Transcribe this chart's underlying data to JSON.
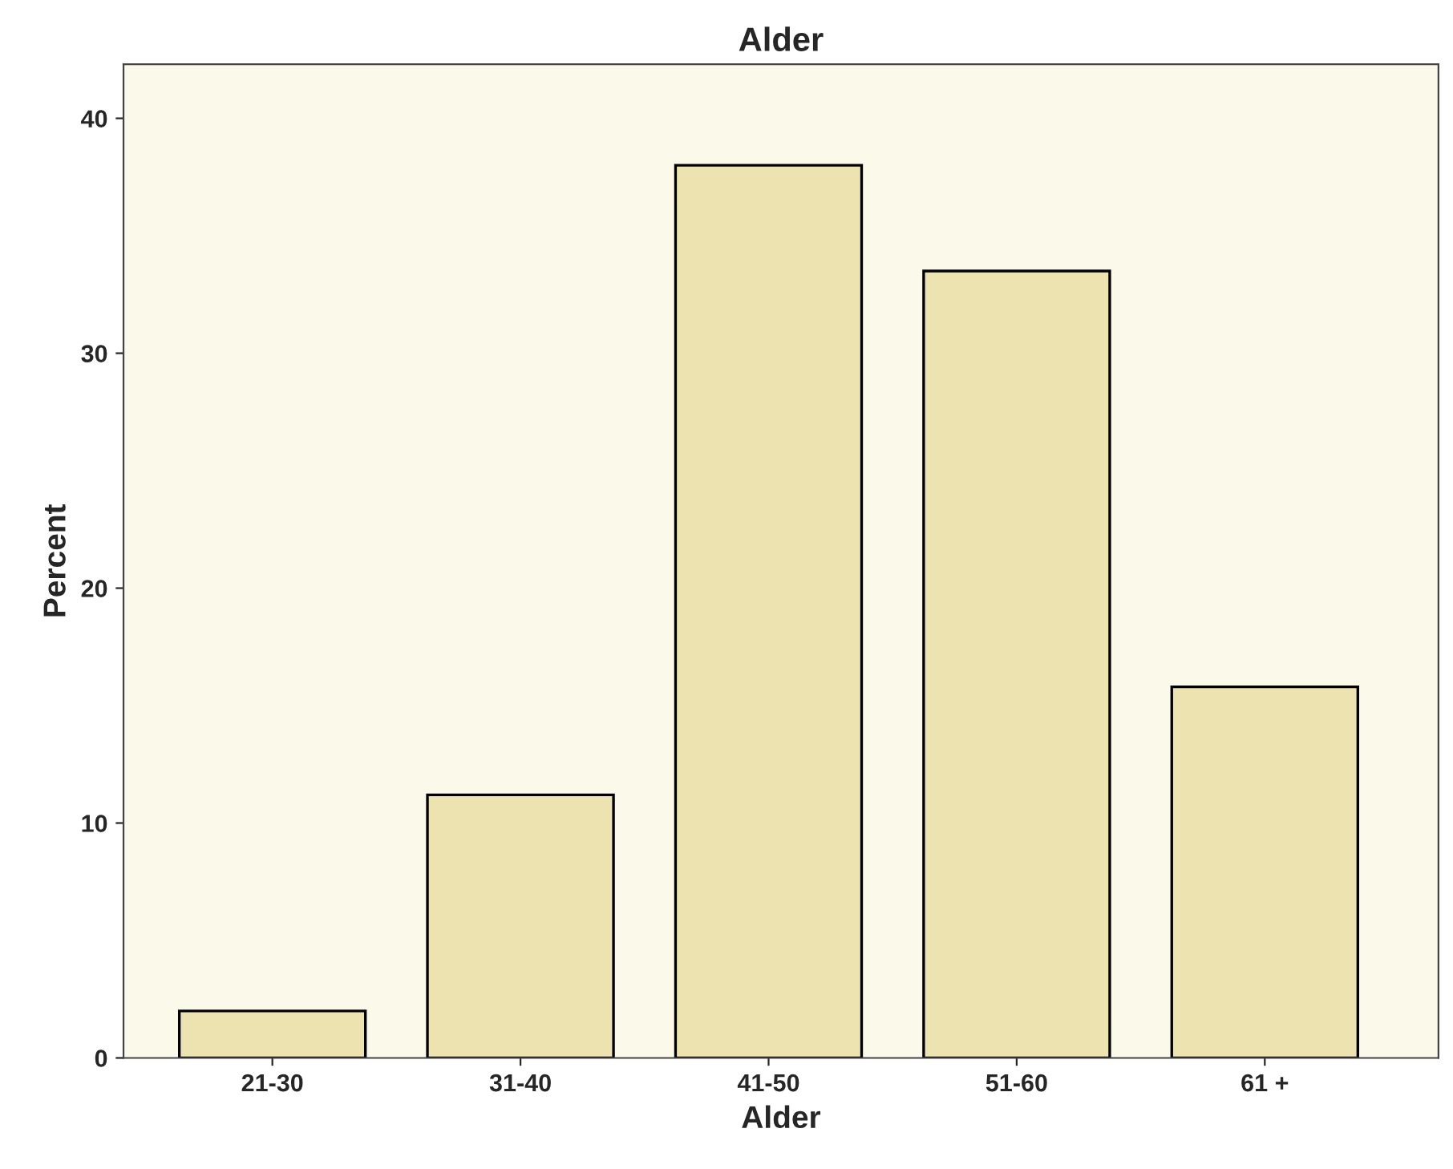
{
  "chart_data": {
    "type": "bar",
    "title": "Alder",
    "xlabel": "Alder",
    "ylabel": "Percent",
    "categories": [
      "21-30",
      "31-40",
      "41-50",
      "51-60",
      "61 +"
    ],
    "values": [
      2.0,
      11.2,
      38.0,
      33.5,
      15.8
    ],
    "color": "#ede3b0",
    "ylim": [
      0,
      42.3
    ],
    "yticks": [
      0,
      10,
      20,
      30,
      40
    ],
    "grid": false
  }
}
